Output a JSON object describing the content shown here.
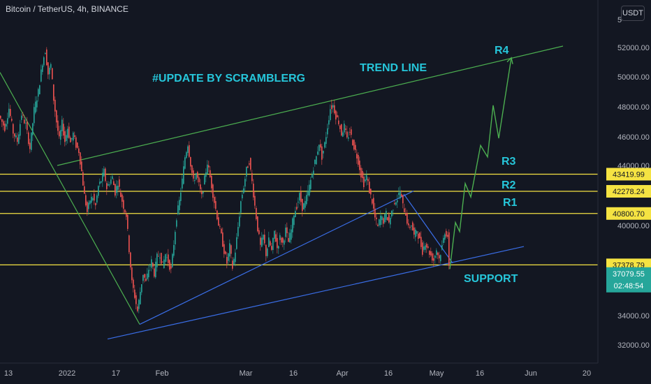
{
  "header": {
    "title": "Bitcoin / TetherUS, 4h, BINANCE"
  },
  "currency_button": "USDT",
  "axis_top_partial": "5",
  "chart_data": {
    "type": "line",
    "title": "",
    "annotations": {
      "update": "#UPDATE BY SCRAMBLERG",
      "trend_line": "TREND LINE",
      "r4": "R4",
      "r3": "R3",
      "r2": "R2",
      "r1": "R1",
      "support": "SUPPORT"
    },
    "yticks": [
      "52000.00",
      "50000.00",
      "48000.00",
      "46000.00",
      "44000.00",
      "40000.00",
      "34000.00",
      "32000.00"
    ],
    "ytick_values": [
      52000,
      50000,
      48000,
      46000,
      44000,
      40000,
      34000,
      32000
    ],
    "xticks": [
      "13",
      "2022",
      "17",
      "Feb",
      "Mar",
      "16",
      "Apr",
      "16",
      "May",
      "16",
      "Jun",
      "20"
    ],
    "ylim": [
      31500,
      54000
    ],
    "levels": [
      {
        "label": "43419.99",
        "value": 43419.99
      },
      {
        "label": "42278.24",
        "value": 42278.24
      },
      {
        "label": "40800.70",
        "value": 40800.7
      },
      {
        "label": "37378.79",
        "value": 37378.79
      }
    ],
    "last_price": {
      "label": "37079.55",
      "value": 37079.55
    },
    "countdown": "02:48:54",
    "price_series": [
      [
        0,
        47400
      ],
      [
        8,
        46600
      ],
      [
        14,
        47900
      ],
      [
        20,
        46300
      ],
      [
        26,
        45700
      ],
      [
        32,
        47500
      ],
      [
        38,
        46800
      ],
      [
        44,
        45200
      ],
      [
        50,
        47800
      ],
      [
        56,
        49000
      ],
      [
        62,
        51000
      ],
      [
        66,
        51800
      ],
      [
        70,
        50200
      ],
      [
        74,
        50800
      ],
      [
        78,
        48500
      ],
      [
        82,
        47000
      ],
      [
        86,
        45800
      ],
      [
        90,
        46900
      ],
      [
        94,
        45700
      ],
      [
        98,
        46600
      ],
      [
        102,
        45600
      ],
      [
        106,
        46200
      ],
      [
        110,
        45400
      ],
      [
        114,
        45000
      ],
      [
        118,
        43600
      ],
      [
        122,
        42000
      ],
      [
        126,
        40900
      ],
      [
        130,
        41700
      ],
      [
        134,
        41900
      ],
      [
        138,
        41300
      ],
      [
        142,
        42600
      ],
      [
        146,
        43000
      ],
      [
        150,
        43600
      ],
      [
        154,
        42500
      ],
      [
        158,
        42900
      ],
      [
        162,
        43200
      ],
      [
        166,
        42200
      ],
      [
        170,
        42900
      ],
      [
        174,
        42000
      ],
      [
        178,
        41300
      ],
      [
        182,
        40700
      ],
      [
        186,
        38400
      ],
      [
        190,
        36200
      ],
      [
        194,
        35300
      ],
      [
        198,
        34300
      ],
      [
        202,
        35600
      ],
      [
        206,
        36800
      ],
      [
        210,
        36200
      ],
      [
        214,
        37100
      ],
      [
        218,
        37600
      ],
      [
        222,
        36800
      ],
      [
        226,
        37900
      ],
      [
        230,
        38100
      ],
      [
        234,
        37300
      ],
      [
        238,
        38100
      ],
      [
        242,
        37600
      ],
      [
        246,
        37000
      ],
      [
        250,
        38800
      ],
      [
        254,
        40600
      ],
      [
        258,
        41600
      ],
      [
        262,
        43000
      ],
      [
        266,
        44600
      ],
      [
        270,
        45500
      ],
      [
        274,
        44100
      ],
      [
        278,
        42900
      ],
      [
        282,
        43500
      ],
      [
        286,
        42700
      ],
      [
        290,
        41900
      ],
      [
        294,
        43100
      ],
      [
        298,
        44200
      ],
      [
        302,
        43200
      ],
      [
        306,
        42100
      ],
      [
        310,
        41100
      ],
      [
        314,
        40100
      ],
      [
        318,
        39300
      ],
      [
        322,
        38300
      ],
      [
        326,
        37500
      ],
      [
        330,
        38600
      ],
      [
        334,
        37200
      ],
      [
        338,
        38300
      ],
      [
        342,
        39900
      ],
      [
        346,
        41600
      ],
      [
        350,
        42600
      ],
      [
        354,
        43700
      ],
      [
        358,
        44300
      ],
      [
        362,
        42900
      ],
      [
        366,
        41300
      ],
      [
        370,
        39800
      ],
      [
        374,
        38600
      ],
      [
        378,
        39300
      ],
      [
        382,
        38100
      ],
      [
        386,
        39000
      ],
      [
        390,
        38300
      ],
      [
        394,
        39600
      ],
      [
        398,
        38500
      ],
      [
        402,
        39200
      ],
      [
        406,
        38800
      ],
      [
        410,
        39700
      ],
      [
        414,
        38900
      ],
      [
        418,
        39700
      ],
      [
        422,
        40800
      ],
      [
        426,
        41300
      ],
      [
        430,
        42000
      ],
      [
        434,
        41200
      ],
      [
        438,
        41500
      ],
      [
        442,
        42200
      ],
      [
        446,
        43000
      ],
      [
        450,
        43900
      ],
      [
        454,
        44600
      ],
      [
        458,
        45600
      ],
      [
        462,
        44600
      ],
      [
        466,
        45500
      ],
      [
        470,
        46700
      ],
      [
        474,
        47900
      ],
      [
        478,
        48100
      ],
      [
        482,
        47400
      ],
      [
        486,
        47000
      ],
      [
        490,
        46200
      ],
      [
        494,
        46700
      ],
      [
        498,
        45800
      ],
      [
        502,
        46400
      ],
      [
        506,
        45600
      ],
      [
        510,
        45000
      ],
      [
        514,
        44300
      ],
      [
        518,
        43400
      ],
      [
        522,
        42800
      ],
      [
        526,
        43300
      ],
      [
        530,
        42300
      ],
      [
        534,
        41600
      ],
      [
        538,
        40500
      ],
      [
        542,
        39900
      ],
      [
        546,
        40600
      ],
      [
        550,
        40300
      ],
      [
        554,
        40800
      ],
      [
        558,
        40200
      ],
      [
        562,
        40900
      ],
      [
        566,
        41600
      ],
      [
        570,
        41800
      ],
      [
        574,
        42300
      ],
      [
        578,
        41300
      ],
      [
        582,
        40800
      ],
      [
        586,
        39800
      ],
      [
        590,
        40100
      ],
      [
        594,
        39300
      ],
      [
        598,
        39700
      ],
      [
        602,
        39000
      ],
      [
        606,
        38300
      ],
      [
        610,
        38900
      ],
      [
        614,
        38400
      ],
      [
        618,
        38000
      ],
      [
        622,
        37700
      ],
      [
        626,
        38400
      ],
      [
        630,
        37800
      ],
      [
        634,
        38600
      ],
      [
        638,
        39600
      ],
      [
        642,
        39300
      ],
      [
        644,
        37100
      ]
    ],
    "projection": [
      [
        644,
        37100
      ],
      [
        652,
        40200
      ],
      [
        658,
        39600
      ],
      [
        666,
        42800
      ],
      [
        674,
        41900
      ],
      [
        688,
        45400
      ],
      [
        698,
        44600
      ],
      [
        706,
        48100
      ],
      [
        714,
        45900
      ],
      [
        732,
        51300
      ]
    ],
    "trend_lines": [
      {
        "name": "upper",
        "color": "#4caf50",
        "from": [
          82,
          44000
        ],
        "to": [
          806,
          52100
        ]
      },
      {
        "name": "falling",
        "color": "#4caf50",
        "from": [
          0,
          50300
        ],
        "to": [
          200,
          33400
        ]
      },
      {
        "name": "rising",
        "color": "#3a6ee8",
        "from": [
          200,
          33400
        ],
        "to": [
          592,
          42300
        ]
      },
      {
        "name": "wedge-top",
        "color": "#3a6ee8",
        "from": [
          578,
          42100
        ],
        "to": [
          648,
          37500
        ]
      },
      {
        "name": "support",
        "color": "#3a6ee8",
        "from": [
          154,
          32400
        ],
        "to": [
          750,
          38600
        ]
      }
    ]
  }
}
